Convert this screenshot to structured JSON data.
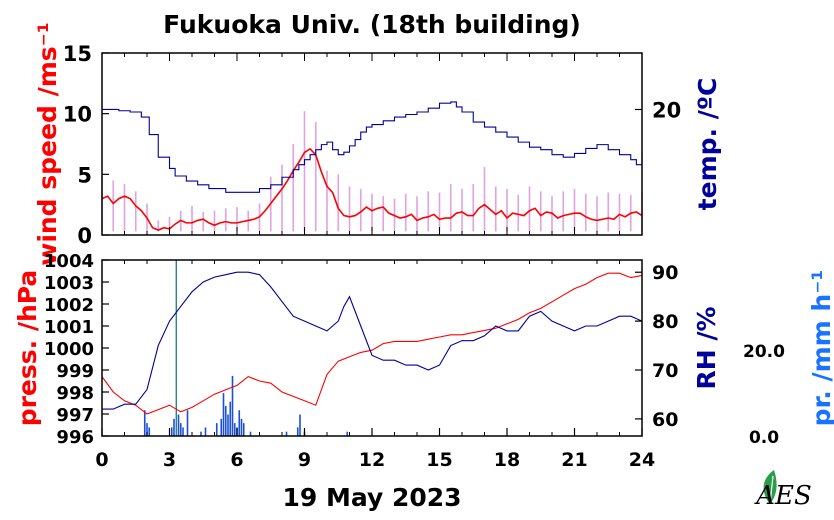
{
  "title": "Fukuoka Univ. (18th building)",
  "date_label": "19 May 2023",
  "colors": {
    "wind": "#ff0000",
    "wind_raw": "#d98cd9",
    "temp": "#00009a",
    "pressure": "#ff0000",
    "rh": "#00009a",
    "precip": "#1a4fd6",
    "precip_label": "#1a73ff",
    "logo": "#2a9d48"
  },
  "logo": {
    "text": "AES",
    "icon": "leaf-logo-icon"
  },
  "chart_data": [
    {
      "type": "line",
      "panel": "top",
      "x_domain": [
        0,
        24
      ],
      "left_axis": {
        "label": "wind speed /ms⁻¹",
        "ylim": [
          0,
          15
        ],
        "ticks": [
          "0",
          "5",
          "10",
          "15"
        ]
      },
      "right_axis": {
        "label": "temp. /ºC",
        "ylim": [
          10,
          24.5
        ],
        "ticks": [
          "20"
        ]
      },
      "series": [
        {
          "axis": "left",
          "style": "raw-band",
          "color_key": "wind_raw",
          "x": [
            0,
            0.5,
            1,
            1.5,
            2,
            2.5,
            3,
            3.5,
            4,
            4.5,
            5,
            5.5,
            6,
            6.5,
            7,
            7.5,
            8,
            8.5,
            9,
            9.5,
            10,
            10.5,
            11,
            11.5,
            12,
            12.5,
            13,
            13.5,
            14,
            14.5,
            15,
            15.5,
            16,
            16.5,
            17,
            17.5,
            18,
            18.5,
            19,
            19.5,
            20,
            20.5,
            21,
            21.5,
            22,
            22.5,
            23,
            23.5,
            24
          ],
          "values": [
            4.8,
            4.5,
            4.2,
            3.6,
            2.6,
            1.2,
            1.5,
            2.0,
            2.4,
            1.9,
            2.0,
            2.2,
            2.3,
            2.0,
            2.6,
            4.8,
            5.8,
            7.5,
            10.2,
            9.3,
            5.3,
            5.0,
            4.0,
            3.8,
            3.4,
            3.2,
            3.0,
            3.4,
            3.2,
            3.6,
            3.5,
            4.2,
            3.8,
            4.2,
            5.6,
            4.0,
            3.8,
            3.3,
            4.0,
            3.6,
            3.2,
            3.6,
            3.8,
            3.4,
            3.2,
            3.5,
            3.4,
            3.3,
            3.5
          ]
        },
        {
          "axis": "left",
          "style": "line",
          "color_key": "wind",
          "x": [
            0,
            0.25,
            0.5,
            0.75,
            1,
            1.25,
            1.5,
            1.75,
            2,
            2.25,
            2.5,
            2.75,
            3,
            3.25,
            3.5,
            3.75,
            4,
            4.25,
            4.5,
            4.75,
            5,
            5.25,
            5.5,
            5.75,
            6,
            6.25,
            6.5,
            6.75,
            7,
            7.25,
            7.5,
            7.75,
            8,
            8.25,
            8.5,
            8.75,
            9,
            9.25,
            9.5,
            9.75,
            10,
            10.25,
            10.5,
            10.75,
            11,
            11.25,
            11.5,
            11.75,
            12,
            12.25,
            12.5,
            12.75,
            13,
            13.25,
            13.5,
            13.75,
            14,
            14.25,
            14.5,
            14.75,
            15,
            15.25,
            15.5,
            15.75,
            16,
            16.25,
            16.5,
            16.75,
            17,
            17.25,
            17.5,
            17.75,
            18,
            18.25,
            18.5,
            18.75,
            19,
            19.25,
            19.5,
            19.75,
            20,
            20.25,
            20.5,
            20.75,
            21,
            21.25,
            21.5,
            21.75,
            22,
            22.25,
            22.5,
            22.75,
            23,
            23.25,
            23.5,
            23.75,
            24
          ],
          "values": [
            3.0,
            3.2,
            2.6,
            3.0,
            3.2,
            3.0,
            2.4,
            2.0,
            1.4,
            0.6,
            0.4,
            0.6,
            0.5,
            0.9,
            1.2,
            1.0,
            1.0,
            1.2,
            1.3,
            1.0,
            0.8,
            1.0,
            1.1,
            1.0,
            1.0,
            1.1,
            1.2,
            1.3,
            1.5,
            2.0,
            2.6,
            3.2,
            3.8,
            4.5,
            5.3,
            6.0,
            6.8,
            7.1,
            6.6,
            5.2,
            4.0,
            3.5,
            2.2,
            1.6,
            1.5,
            1.6,
            1.9,
            2.3,
            2.0,
            2.2,
            2.3,
            1.8,
            1.6,
            1.4,
            1.5,
            1.7,
            1.2,
            1.4,
            1.5,
            1.7,
            1.3,
            1.4,
            1.4,
            1.8,
            1.9,
            1.6,
            1.6,
            2.2,
            2.5,
            2.1,
            1.7,
            2.0,
            1.4,
            1.8,
            1.7,
            1.6,
            2.0,
            2.2,
            1.6,
            1.9,
            1.8,
            1.4,
            1.6,
            1.7,
            1.8,
            1.8,
            1.5,
            1.3,
            1.2,
            1.3,
            1.4,
            1.3,
            1.7,
            1.5,
            1.8,
            1.9,
            1.6
          ]
        },
        {
          "axis": "right",
          "style": "step",
          "color_key": "temp",
          "x": [
            0,
            0.75,
            1.25,
            1.75,
            2.1,
            2.5,
            3,
            3.25,
            3.75,
            4.25,
            4.75,
            5.5,
            6,
            6.5,
            7,
            7.5,
            8,
            8.5,
            8.75,
            9,
            9.25,
            9.5,
            9.75,
            10,
            10.25,
            10.5,
            10.75,
            11,
            11.25,
            11.5,
            11.75,
            12,
            12.5,
            13,
            13.5,
            14,
            14.5,
            15,
            15.5,
            15.75,
            16,
            16.5,
            17,
            17.5,
            18,
            18.5,
            19,
            19.5,
            20,
            20.5,
            21,
            21.5,
            22,
            22.5,
            23,
            23.5,
            23.75,
            24
          ],
          "values": [
            20.0,
            19.9,
            19.8,
            19.4,
            18.0,
            16.2,
            15.3,
            14.7,
            14.3,
            14.0,
            13.7,
            13.4,
            13.4,
            13.4,
            13.7,
            14.0,
            14.6,
            15.2,
            15.6,
            16.0,
            16.4,
            16.8,
            17.2,
            17.4,
            16.8,
            16.4,
            16.6,
            17.1,
            17.6,
            18.2,
            18.6,
            18.8,
            19.1,
            19.4,
            19.6,
            19.8,
            20.1,
            20.5,
            20.6,
            20.2,
            19.8,
            19.0,
            18.6,
            18.2,
            17.8,
            17.4,
            17.0,
            16.8,
            16.4,
            16.2,
            16.5,
            16.9,
            17.2,
            16.8,
            16.4,
            16.0,
            15.6,
            16.6
          ]
        }
      ]
    },
    {
      "type": "line",
      "panel": "bottom",
      "x_domain": [
        0,
        24
      ],
      "x_ticks": [
        "0",
        "3",
        "6",
        "9",
        "12",
        "15",
        "18",
        "21",
        "24"
      ],
      "left_axis": {
        "label": "press. /hPa",
        "ylim": [
          996,
          1004
        ],
        "ticks": [
          "996",
          "997",
          "998",
          "999",
          "1000",
          "1001",
          "1002",
          "1003",
          "1004"
        ]
      },
      "right_axis": {
        "label": "RH /%",
        "ylim": [
          56.5,
          92.5
        ],
        "ticks": [
          "60",
          "70",
          "80",
          "90"
        ]
      },
      "precip_axis": {
        "label": "pr. /mm h⁻¹",
        "ticks": [
          "0.0",
          "20.0"
        ],
        "ylim": [
          0,
          41
        ]
      },
      "series": [
        {
          "axis": "left",
          "style": "line",
          "color_key": "pressure",
          "x": [
            0,
            0.5,
            1,
            1.5,
            2,
            2.5,
            3,
            3.5,
            4,
            4.5,
            5,
            5.5,
            6,
            6.5,
            7,
            7.5,
            8,
            8.5,
            9,
            9.5,
            10,
            10.5,
            11,
            11.5,
            12,
            12.5,
            13,
            13.5,
            14,
            14.5,
            15,
            15.5,
            16,
            16.5,
            17,
            17.5,
            18,
            18.5,
            19,
            19.5,
            20,
            20.5,
            21,
            21.5,
            22,
            22.5,
            23,
            23.5,
            24
          ],
          "values": [
            998.7,
            998.0,
            997.6,
            997.4,
            997.0,
            997.2,
            997.4,
            997.1,
            997.3,
            997.6,
            997.9,
            998.1,
            998.3,
            998.7,
            998.5,
            998.4,
            998.0,
            997.8,
            997.6,
            997.4,
            998.8,
            999.4,
            999.6,
            999.8,
            999.9,
            1000.2,
            1000.3,
            1000.3,
            1000.3,
            1000.4,
            1000.5,
            1000.6,
            1000.6,
            1000.7,
            1000.8,
            1000.9,
            1001.1,
            1001.3,
            1001.6,
            1001.8,
            1002.1,
            1002.4,
            1002.7,
            1002.9,
            1003.2,
            1003.4,
            1003.4,
            1003.2,
            1003.3
          ]
        },
        {
          "axis": "right",
          "style": "line",
          "color_key": "rh",
          "x": [
            0,
            0.5,
            1,
            1.5,
            2,
            2.5,
            3,
            3.5,
            4,
            4.5,
            5,
            5.5,
            6,
            6.5,
            7,
            7.5,
            8,
            8.5,
            9,
            9.5,
            10,
            10.5,
            10.75,
            11,
            11.5,
            12,
            12.5,
            13,
            13.5,
            14,
            14.5,
            15,
            15.5,
            16,
            16.5,
            17,
            17.5,
            18,
            18.5,
            19,
            19.5,
            20,
            20.5,
            21,
            21.5,
            22,
            22.5,
            23,
            23.5,
            24
          ],
          "values": [
            62,
            62,
            63,
            63,
            66,
            75,
            80,
            83,
            86,
            88,
            89,
            89.5,
            90,
            90,
            89.5,
            87,
            84,
            81,
            80,
            79,
            78,
            80,
            83,
            85,
            79,
            73,
            72,
            72,
            71,
            71,
            70,
            71,
            75,
            76,
            76,
            77,
            79,
            78,
            78,
            81,
            82,
            80,
            79,
            78,
            79,
            79,
            80,
            81,
            81,
            80
          ]
        },
        {
          "axis": "precip",
          "style": "bars",
          "color_key": "precip",
          "x": [
            1.9,
            2.0,
            2.1,
            3.1,
            3.2,
            3.3,
            3.4,
            3.5,
            3.6,
            3.8,
            4.4,
            4.6,
            5.1,
            5.3,
            5.4,
            5.5,
            5.6,
            5.7,
            5.8,
            5.9,
            6.0,
            6.1,
            6.2,
            6.3,
            6.6,
            8.2,
            8.7,
            8.8,
            9.0,
            10.9
          ],
          "values": [
            6,
            3,
            2,
            2,
            4,
            41,
            5,
            3,
            2,
            6,
            1,
            2,
            3,
            4,
            10,
            7,
            5,
            8,
            14,
            3,
            2,
            6,
            4,
            3,
            1,
            1,
            2,
            5,
            1,
            1
          ]
        }
      ]
    }
  ]
}
